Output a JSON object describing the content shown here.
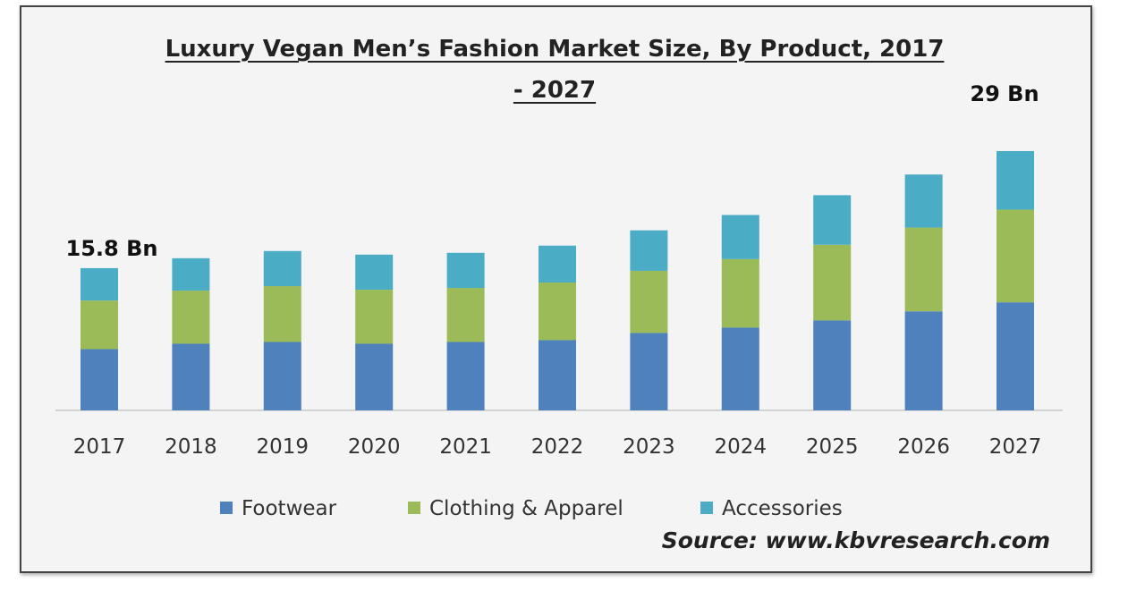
{
  "chart_data": {
    "type": "bar",
    "stacked": true,
    "title_line1": "Luxury Vegan Men’s Fashion Market Size, By Product, 2017",
    "title_line2": "- 2027",
    "categories": [
      "2017",
      "2018",
      "2019",
      "2020",
      "2021",
      "2022",
      "2023",
      "2024",
      "2025",
      "2026",
      "2027"
    ],
    "series": [
      {
        "name": "Footwear",
        "color": "#4f81bd",
        "values": [
          6.8,
          7.4,
          7.6,
          7.4,
          7.6,
          7.8,
          8.6,
          9.2,
          10.0,
          11.0,
          12.0
        ]
      },
      {
        "name": "Clothing & Apparel",
        "color": "#9bbb59",
        "values": [
          5.4,
          5.9,
          6.2,
          6.0,
          6.0,
          6.4,
          6.9,
          7.6,
          8.4,
          9.3,
          10.3
        ]
      },
      {
        "name": "Accessories",
        "color": "#4bacc6",
        "values": [
          3.6,
          3.6,
          3.9,
          3.9,
          3.9,
          4.1,
          4.5,
          4.9,
          5.5,
          5.9,
          6.5
        ]
      }
    ],
    "annotations": [
      {
        "category": "2017",
        "text": "15.8 Bn"
      },
      {
        "category": "2027",
        "text": "29 Bn"
      }
    ],
    "ylim": [
      0,
      29
    ],
    "grid": false,
    "legend_position": "bottom"
  },
  "source": "Source: www.kbvresearch.com"
}
